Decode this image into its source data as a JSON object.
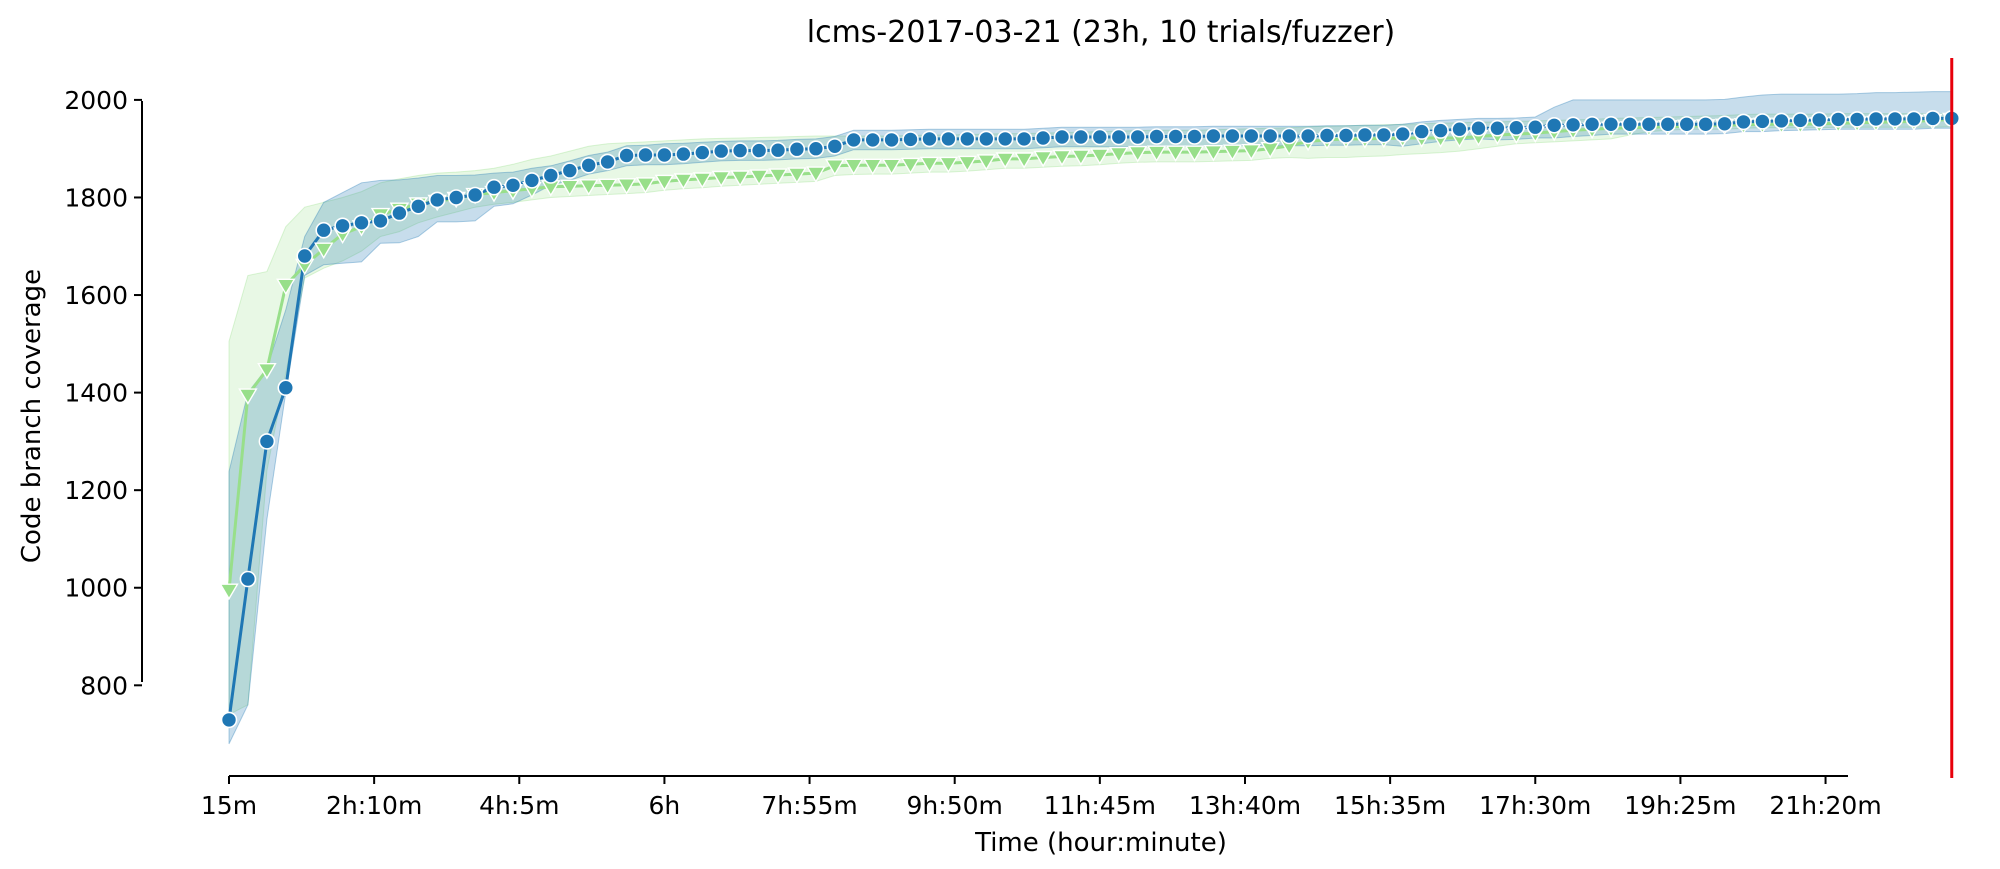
{
  "chart_data": {
    "type": "line",
    "title": "lcms-2017-03-21 (23h, 10 trials/fuzzer)",
    "xlabel": "Time (hour:minute)",
    "ylabel": "Code branch coverage",
    "x_unit": "minutes",
    "xlim": [
      15,
      1400
    ],
    "ylim": [
      610,
      2090
    ],
    "x_ticks": [
      {
        "value": 15,
        "label": "15m"
      },
      {
        "value": 130,
        "label": "2h:10m"
      },
      {
        "value": 245,
        "label": "4h:5m"
      },
      {
        "value": 360,
        "label": "6h"
      },
      {
        "value": 475,
        "label": "7h:55m"
      },
      {
        "value": 590,
        "label": "9h:50m"
      },
      {
        "value": 705,
        "label": "11h:45m"
      },
      {
        "value": 820,
        "label": "13h:40m"
      },
      {
        "value": 935,
        "label": "15h:35m"
      },
      {
        "value": 1050,
        "label": "17h:30m"
      },
      {
        "value": 1165,
        "label": "19h:25m"
      },
      {
        "value": 1280,
        "label": "21h:20m"
      }
    ],
    "y_ticks": [
      {
        "value": 800,
        "label": "800"
      },
      {
        "value": 1000,
        "label": "1000"
      },
      {
        "value": 1200,
        "label": "1200"
      },
      {
        "value": 1400,
        "label": "1400"
      },
      {
        "value": 1600,
        "label": "1600"
      },
      {
        "value": 1800,
        "label": "1800"
      },
      {
        "value": 2000,
        "label": "2000"
      }
    ],
    "vline": {
      "x": 1380,
      "color": "#e8000b"
    },
    "grid": false,
    "legend": "none",
    "series": [
      {
        "marker": "circle",
        "color": "#1f77b4",
        "band_color": "#1f77b4",
        "x": [
          15,
          30,
          45,
          60,
          75,
          90,
          105,
          120,
          135,
          150,
          165,
          180,
          195,
          210,
          225,
          240,
          255,
          270,
          285,
          300,
          315,
          330,
          345,
          360,
          375,
          390,
          405,
          420,
          435,
          450,
          465,
          480,
          495,
          510,
          525,
          540,
          555,
          570,
          585,
          600,
          615,
          630,
          645,
          660,
          675,
          690,
          705,
          720,
          735,
          750,
          765,
          780,
          795,
          810,
          825,
          840,
          855,
          870,
          885,
          900,
          915,
          930,
          945,
          960,
          975,
          990,
          1005,
          1020,
          1035,
          1050,
          1065,
          1080,
          1095,
          1110,
          1125,
          1140,
          1155,
          1170,
          1185,
          1200,
          1215,
          1230,
          1245,
          1260,
          1275,
          1290,
          1305,
          1320,
          1335,
          1350,
          1365,
          1380
        ],
        "values": [
          729,
          1018,
          1300,
          1410,
          1680,
          1733,
          1742,
          1748,
          1752,
          1768,
          1782,
          1795,
          1800,
          1805,
          1821,
          1825,
          1835,
          1845,
          1855,
          1866,
          1873,
          1886,
          1887,
          1887,
          1889,
          1892,
          1895,
          1896,
          1896,
          1897,
          1899,
          1900,
          1905,
          1918,
          1918,
          1918,
          1919,
          1920,
          1920,
          1920,
          1920,
          1920,
          1920,
          1922,
          1924,
          1924,
          1924,
          1924,
          1924,
          1925,
          1925,
          1925,
          1926,
          1926,
          1926,
          1926,
          1926,
          1926,
          1927,
          1927,
          1928,
          1928,
          1930,
          1935,
          1937,
          1940,
          1942,
          1942,
          1943,
          1944,
          1948,
          1949,
          1950,
          1950,
          1950,
          1950,
          1950,
          1950,
          1950,
          1951,
          1955,
          1956,
          1957,
          1958,
          1959,
          1960,
          1960,
          1961,
          1961,
          1961,
          1962,
          1962
        ],
        "lower": [
          680,
          760,
          1140,
          1400,
          1640,
          1662,
          1665,
          1668,
          1706,
          1707,
          1720,
          1750,
          1750,
          1752,
          1782,
          1787,
          1805,
          1825,
          1835,
          1848,
          1855,
          1865,
          1867,
          1867,
          1869,
          1872,
          1875,
          1876,
          1876,
          1877,
          1879,
          1880,
          1885,
          1898,
          1898,
          1898,
          1899,
          1900,
          1900,
          1900,
          1900,
          1900,
          1900,
          1902,
          1904,
          1904,
          1904,
          1904,
          1904,
          1905,
          1905,
          1905,
          1906,
          1906,
          1906,
          1906,
          1906,
          1906,
          1907,
          1907,
          1908,
          1908,
          1905,
          1910,
          1915,
          1918,
          1920,
          1918,
          1919,
          1922,
          1922,
          1925,
          1927,
          1930,
          1930,
          1930,
          1930,
          1930,
          1930,
          1931,
          1935,
          1935,
          1937,
          1938,
          1939,
          1940,
          1940,
          1940,
          1940,
          1940,
          1942,
          1942
        ],
        "upper": [
          1238,
          1400,
          1450,
          1570,
          1720,
          1790,
          1810,
          1830,
          1835,
          1836,
          1840,
          1845,
          1845,
          1846,
          1850,
          1852,
          1860,
          1865,
          1875,
          1886,
          1893,
          1906,
          1907,
          1910,
          1911,
          1913,
          1915,
          1916,
          1916,
          1917,
          1919,
          1920,
          1925,
          1938,
          1938,
          1938,
          1939,
          1940,
          1940,
          1940,
          1940,
          1940,
          1940,
          1942,
          1944,
          1944,
          1944,
          1944,
          1944,
          1945,
          1945,
          1945,
          1946,
          1946,
          1946,
          1946,
          1946,
          1946,
          1947,
          1947,
          1948,
          1948,
          1950,
          1955,
          1958,
          1960,
          1962,
          1962,
          1963,
          1965,
          1985,
          2000,
          2000,
          2000,
          2000,
          2000,
          2000,
          2000,
          2000,
          2001,
          2006,
          2010,
          2012,
          2012,
          2012,
          2012,
          2013,
          2015,
          2015,
          2016,
          2017,
          2017
        ]
      },
      {
        "marker": "triangle-down",
        "color": "#98df8a",
        "band_color": "#98df8a",
        "x": [
          15,
          30,
          45,
          60,
          75,
          90,
          105,
          120,
          135,
          150,
          165,
          180,
          195,
          210,
          225,
          240,
          255,
          270,
          285,
          300,
          315,
          330,
          345,
          360,
          375,
          390,
          405,
          420,
          435,
          450,
          465,
          480,
          495,
          510,
          525,
          540,
          555,
          570,
          585,
          600,
          615,
          630,
          645,
          660,
          675,
          690,
          705,
          720,
          735,
          750,
          765,
          780,
          795,
          810,
          825,
          840,
          855,
          870,
          885,
          900,
          915,
          930,
          945,
          960,
          975,
          990,
          1005,
          1020,
          1035,
          1050,
          1065,
          1080,
          1095,
          1110,
          1125,
          1140,
          1155,
          1170,
          1185,
          1200,
          1215,
          1230,
          1245,
          1260,
          1275,
          1290,
          1305,
          1320,
          1335,
          1350,
          1365,
          1380
        ],
        "values": [
          995,
          1395,
          1447,
          1620,
          1661,
          1694,
          1725,
          1740,
          1765,
          1776,
          1787,
          1792,
          1798,
          1806,
          1810,
          1814,
          1818,
          1822,
          1823,
          1824,
          1825,
          1826,
          1828,
          1833,
          1836,
          1838,
          1841,
          1842,
          1844,
          1846,
          1848,
          1850,
          1865,
          1866,
          1866,
          1866,
          1868,
          1870,
          1870,
          1872,
          1875,
          1879,
          1879,
          1882,
          1884,
          1885,
          1887,
          1890,
          1892,
          1893,
          1893,
          1893,
          1894,
          1895,
          1896,
          1900,
          1906,
          1915,
          1918,
          1920,
          1920,
          1921,
          1922,
          1922,
          1922,
          1922,
          1925,
          1928,
          1930,
          1932,
          1935,
          1938,
          1940,
          1942,
          1943,
          1944,
          1945,
          1946,
          1947,
          1948,
          1949,
          1950,
          1950,
          1950,
          1951,
          1952,
          1953,
          1954,
          1955,
          1956,
          1958,
          1960
        ],
        "lower": [
          740,
          760,
          1240,
          1440,
          1635,
          1655,
          1670,
          1690,
          1720,
          1730,
          1748,
          1760,
          1770,
          1780,
          1786,
          1790,
          1795,
          1800,
          1802,
          1804,
          1806,
          1808,
          1810,
          1815,
          1818,
          1820,
          1823,
          1825,
          1827,
          1829,
          1831,
          1833,
          1845,
          1847,
          1848,
          1848,
          1850,
          1852,
          1852,
          1854,
          1857,
          1860,
          1860,
          1862,
          1864,
          1865,
          1867,
          1870,
          1872,
          1873,
          1873,
          1873,
          1874,
          1875,
          1876,
          1880,
          1882,
          1880,
          1882,
          1882,
          1884,
          1885,
          1888,
          1890,
          1892,
          1895,
          1900,
          1905,
          1910,
          1912,
          1914,
          1916,
          1918,
          1920,
          1928,
          1935,
          1938,
          1940,
          1940,
          1940,
          1942,
          1943,
          1943,
          1943,
          1943,
          1944,
          1944,
          1944,
          1944,
          1944,
          1944,
          1945
        ],
        "upper": [
          1505,
          1640,
          1648,
          1740,
          1780,
          1790,
          1800,
          1812,
          1830,
          1838,
          1845,
          1850,
          1852,
          1855,
          1860,
          1868,
          1878,
          1885,
          1895,
          1905,
          1910,
          1912,
          1914,
          1916,
          1918,
          1920,
          1921,
          1922,
          1923,
          1924,
          1925,
          1926,
          1926,
          1926,
          1926,
          1926,
          1927,
          1928,
          1928,
          1929,
          1930,
          1931,
          1931,
          1932,
          1933,
          1934,
          1935,
          1936,
          1937,
          1938,
          1938,
          1938,
          1939,
          1940,
          1941,
          1942,
          1943,
          1945,
          1946,
          1947,
          1948,
          1949,
          1950,
          1951,
          1952,
          1953,
          1954,
          1955,
          1956,
          1957,
          1958,
          1959,
          1960,
          1962,
          1963,
          1964,
          1965,
          1966,
          1967,
          1968,
          1970,
          1971,
          1971,
          1971,
          1971,
          1972,
          1972,
          1972,
          1972,
          1972,
          1972,
          1972
        ]
      }
    ]
  }
}
